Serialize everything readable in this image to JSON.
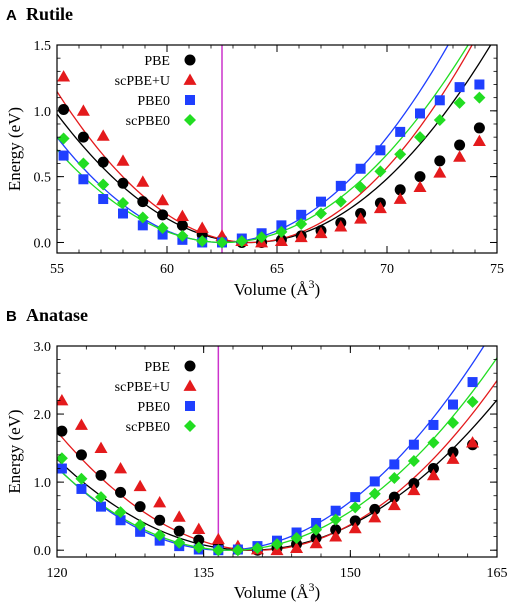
{
  "chart_data": [
    {
      "type": "scatter",
      "panel_letter": "A",
      "title": "Rutile",
      "xlabel": "Volume (Å",
      "xlabel_sup": "3",
      "xlabel_close": ")",
      "ylabel": "Energy (eV)",
      "xlim": [
        55,
        75
      ],
      "ylim": [
        -0.08,
        1.5
      ],
      "xticks": [
        55,
        60,
        65,
        70,
        75
      ],
      "yticks": [
        0.0,
        0.5,
        1.0,
        1.5
      ],
      "xtick_labels": [
        "55",
        "60",
        "65",
        "70",
        "75"
      ],
      "ytick_labels": [
        "0.0",
        "0.5",
        "1.0",
        "1.5"
      ],
      "vline_x": 62.5,
      "vline_color": "#cc33cc",
      "legend_position": "top-left",
      "series": [
        {
          "name": "PBE",
          "marker": "circle",
          "color": "#000000",
          "v0": 63.8,
          "a": 0.0126,
          "x": [
            55.3,
            56.2,
            57.1,
            58.0,
            58.9,
            59.8,
            60.7,
            61.6,
            62.5,
            63.4,
            64.3,
            65.2,
            66.1,
            67.0,
            67.9,
            68.8,
            69.7,
            70.6,
            71.5,
            72.4,
            73.3,
            74.2
          ],
          "y": [
            1.01,
            0.8,
            0.61,
            0.45,
            0.31,
            0.21,
            0.13,
            0.06,
            0.02,
            0.0,
            0.0,
            0.02,
            0.05,
            0.09,
            0.15,
            0.22,
            0.3,
            0.4,
            0.5,
            0.62,
            0.74,
            0.87
          ]
        },
        {
          "name": "scPBE+U",
          "marker": "triangle",
          "color": "#e41a1c",
          "v0": 63.8,
          "a": 0.0148,
          "x": [
            55.3,
            56.2,
            57.1,
            58.0,
            58.9,
            59.8,
            60.7,
            61.6,
            62.5,
            63.4,
            64.3,
            65.2,
            66.1,
            67.0,
            67.9,
            68.8,
            69.7,
            70.6,
            71.5,
            72.4,
            73.3,
            74.2
          ],
          "y": [
            1.26,
            1.0,
            0.81,
            0.62,
            0.46,
            0.32,
            0.2,
            0.11,
            0.05,
            0.01,
            0.0,
            0.01,
            0.04,
            0.07,
            0.12,
            0.18,
            0.26,
            0.33,
            0.42,
            0.53,
            0.65,
            0.77
          ]
        },
        {
          "name": "PBE0",
          "marker": "square",
          "color": "#1f3fff",
          "v0": 62.5,
          "a": 0.0142,
          "x": [
            55.3,
            56.2,
            57.1,
            58.0,
            58.9,
            59.8,
            60.7,
            61.6,
            62.5,
            63.4,
            64.3,
            65.2,
            66.1,
            67.0,
            67.9,
            68.8,
            69.7,
            70.6,
            71.5,
            72.4,
            73.3,
            74.2
          ],
          "y": [
            0.66,
            0.48,
            0.33,
            0.22,
            0.13,
            0.06,
            0.02,
            0.0,
            0.0,
            0.03,
            0.07,
            0.13,
            0.21,
            0.31,
            0.43,
            0.56,
            0.7,
            0.84,
            0.98,
            1.08,
            1.18,
            1.2
          ]
        },
        {
          "name": "scPBE0",
          "marker": "diamond",
          "color": "#22dd22",
          "v0": 62.6,
          "a": 0.0122,
          "x": [
            55.3,
            56.2,
            57.1,
            58.0,
            58.9,
            59.8,
            60.7,
            61.6,
            62.5,
            63.4,
            64.3,
            65.2,
            66.1,
            67.0,
            67.9,
            68.8,
            69.7,
            70.6,
            71.5,
            72.4,
            73.3,
            74.2
          ],
          "y": [
            0.79,
            0.6,
            0.44,
            0.3,
            0.19,
            0.11,
            0.05,
            0.01,
            0.0,
            0.01,
            0.04,
            0.08,
            0.14,
            0.22,
            0.31,
            0.42,
            0.54,
            0.67,
            0.8,
            0.93,
            1.06,
            1.1
          ]
        }
      ]
    },
    {
      "type": "scatter",
      "panel_letter": "B",
      "title": "Anatase",
      "xlabel": "Volume (Å",
      "xlabel_sup": "3",
      "xlabel_close": ")",
      "ylabel": "Energy (eV)",
      "xlim": [
        120,
        165
      ],
      "ylim": [
        -0.1,
        3.0
      ],
      "xticks": [
        120,
        135,
        150,
        165
      ],
      "yticks": [
        0.0,
        1.0,
        2.0,
        3.0
      ],
      "xtick_labels": [
        "120",
        "135",
        "150",
        "165"
      ],
      "ytick_labels": [
        "0.0",
        "1.0",
        "2.0",
        "3.0"
      ],
      "vline_x": 136.5,
      "vline_color": "#cc33cc",
      "legend_position": "top-left",
      "series": [
        {
          "name": "PBE",
          "marker": "circle",
          "color": "#000000",
          "v0": 139.7,
          "a": 0.00345,
          "x": [
            120.5,
            122.5,
            124.5,
            126.5,
            128.5,
            130.5,
            132.5,
            134.5,
            136.5,
            138.5,
            140.5,
            142.5,
            144.5,
            146.5,
            148.5,
            150.5,
            152.5,
            154.5,
            156.5,
            158.5,
            160.5,
            162.5
          ],
          "y": [
            1.75,
            1.4,
            1.1,
            0.85,
            0.64,
            0.44,
            0.28,
            0.15,
            0.06,
            0.01,
            0.0,
            0.03,
            0.09,
            0.18,
            0.3,
            0.43,
            0.6,
            0.78,
            0.98,
            1.2,
            1.44,
            1.55
          ]
        },
        {
          "name": "scPBE+U",
          "marker": "triangle",
          "color": "#e41a1c",
          "v0": 140.5,
          "a": 0.00415,
          "x": [
            120.5,
            122.5,
            124.5,
            126.5,
            128.5,
            130.5,
            132.5,
            134.5,
            136.5,
            138.5,
            140.5,
            142.5,
            144.5,
            146.5,
            148.5,
            150.5,
            152.5,
            154.5,
            156.5,
            158.5,
            160.5,
            162.5
          ],
          "y": [
            2.2,
            1.84,
            1.5,
            1.2,
            0.94,
            0.7,
            0.49,
            0.31,
            0.16,
            0.06,
            0.01,
            0.0,
            0.03,
            0.1,
            0.2,
            0.32,
            0.48,
            0.66,
            0.88,
            1.1,
            1.34,
            1.58
          ]
        },
        {
          "name": "PBE0",
          "marker": "square",
          "color": "#1f3fff",
          "v0": 137.0,
          "a": 0.00422,
          "x": [
            120.5,
            122.5,
            124.5,
            126.5,
            128.5,
            130.5,
            132.5,
            134.5,
            136.5,
            138.5,
            140.5,
            142.5,
            144.5,
            146.5,
            148.5,
            150.5,
            152.5,
            154.5,
            156.5,
            158.5,
            160.5,
            162.5
          ],
          "y": [
            1.2,
            0.9,
            0.64,
            0.44,
            0.27,
            0.14,
            0.06,
            0.01,
            0.0,
            0.01,
            0.06,
            0.14,
            0.26,
            0.4,
            0.58,
            0.78,
            1.01,
            1.26,
            1.55,
            1.84,
            2.14,
            2.47
          ]
        },
        {
          "name": "scPBE0",
          "marker": "diamond",
          "color": "#22dd22",
          "v0": 137.8,
          "a": 0.00382,
          "x": [
            120.5,
            122.5,
            124.5,
            126.5,
            128.5,
            130.5,
            132.5,
            134.5,
            136.5,
            138.5,
            140.5,
            142.5,
            144.5,
            146.5,
            148.5,
            150.5,
            152.5,
            154.5,
            156.5,
            158.5,
            160.5,
            162.5
          ],
          "y": [
            1.35,
            1.05,
            0.78,
            0.56,
            0.37,
            0.22,
            0.11,
            0.04,
            0.0,
            0.0,
            0.03,
            0.09,
            0.18,
            0.3,
            0.45,
            0.63,
            0.83,
            1.06,
            1.31,
            1.58,
            1.87,
            2.18
          ]
        }
      ]
    }
  ]
}
